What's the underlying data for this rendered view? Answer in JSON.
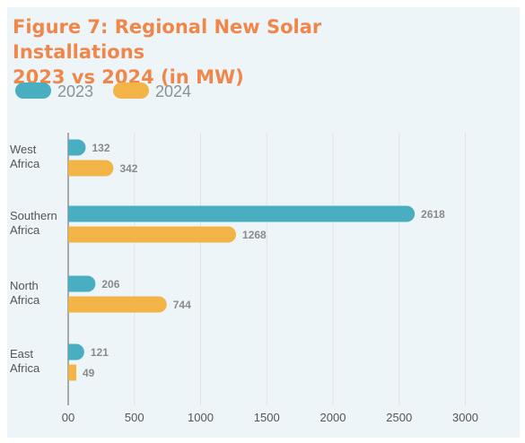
{
  "title_line1": "Figure 7: Regional New Solar Installations",
  "title_line2": "2023 vs 2024 (in MW)",
  "colors": {
    "2023": "#49afc0",
    "2024": "#f2b347",
    "title": "#f0874a",
    "panel": "#eef5f8",
    "grid": "#dde3e7",
    "axis": "#777777",
    "text": "#555555",
    "value_text": "#8a8a8a"
  },
  "legend": [
    {
      "name": "2023",
      "color": "#49afc0"
    },
    {
      "name": "2024",
      "color": "#f2b347"
    }
  ],
  "chart_data": {
    "type": "bar",
    "orientation": "horizontal",
    "categories": [
      [
        "West",
        "Africa"
      ],
      [
        "Southern",
        "Africa"
      ],
      [
        "North",
        "Africa"
      ],
      [
        "East",
        "Africa"
      ]
    ],
    "series": [
      {
        "name": "2023",
        "values": [
          132,
          2618,
          206,
          121
        ]
      },
      {
        "name": "2024",
        "values": [
          342,
          1268,
          744,
          49
        ]
      }
    ],
    "xlim": [
      0,
      3000
    ],
    "xticks": [
      0,
      500,
      1000,
      1500,
      2000,
      2500,
      3000
    ],
    "xtick_labels": [
      "00",
      "500",
      "1000",
      "1500",
      "2000",
      "2500",
      "3000"
    ],
    "grid": true,
    "legend_position": "top-left"
  }
}
